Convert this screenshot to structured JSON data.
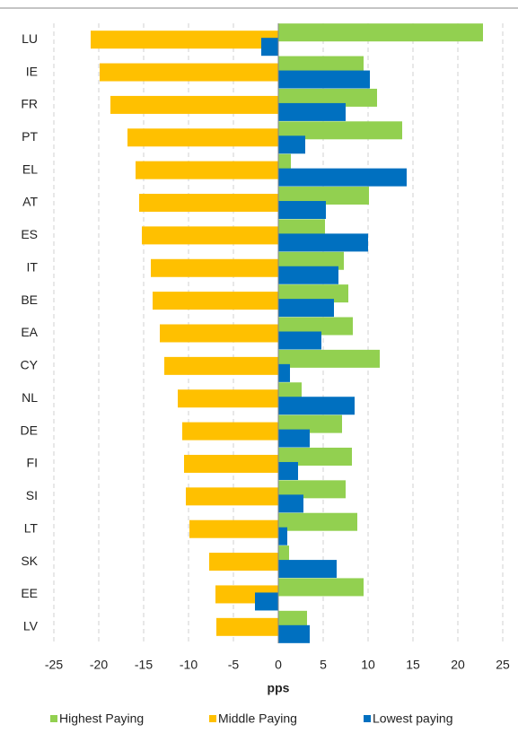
{
  "chart_data": {
    "type": "hbar",
    "categories": [
      "LU",
      "IE",
      "FR",
      "PT",
      "EL",
      "AT",
      "ES",
      "IT",
      "BE",
      "EA",
      "CY",
      "NL",
      "DE",
      "FI",
      "SI",
      "LT",
      "SK",
      "EE",
      "LV"
    ],
    "series": [
      {
        "name": "Highest Paying",
        "color": "#92d050",
        "values": [
          22.8,
          9.5,
          11.0,
          13.8,
          1.4,
          10.1,
          5.2,
          7.3,
          7.8,
          8.3,
          11.3,
          2.6,
          7.1,
          8.2,
          7.5,
          8.8,
          1.2,
          9.5,
          3.2
        ]
      },
      {
        "name": "Middle Paying",
        "color": "#ffc000",
        "values": [
          -20.9,
          -19.9,
          -18.7,
          -16.8,
          -15.9,
          -15.5,
          -15.2,
          -14.2,
          -14.0,
          -13.2,
          -12.7,
          -11.2,
          -10.7,
          -10.5,
          -10.3,
          -9.9,
          -7.7,
          -7.0,
          -6.9
        ]
      },
      {
        "name": "Lowest paying",
        "color": "#0070c0",
        "values": [
          -1.9,
          10.2,
          7.5,
          3.0,
          14.3,
          5.3,
          10.0,
          6.7,
          6.2,
          4.8,
          1.3,
          8.5,
          3.5,
          2.2,
          2.8,
          1.0,
          6.5,
          -2.6,
          3.5
        ]
      }
    ],
    "xlabel": "pps",
    "xlim": [
      -25,
      25
    ],
    "xticks": [
      -25,
      -20,
      -15,
      -10,
      -5,
      0,
      5,
      10,
      15,
      20,
      25
    ],
    "grid": true,
    "legend": "bottom"
  }
}
